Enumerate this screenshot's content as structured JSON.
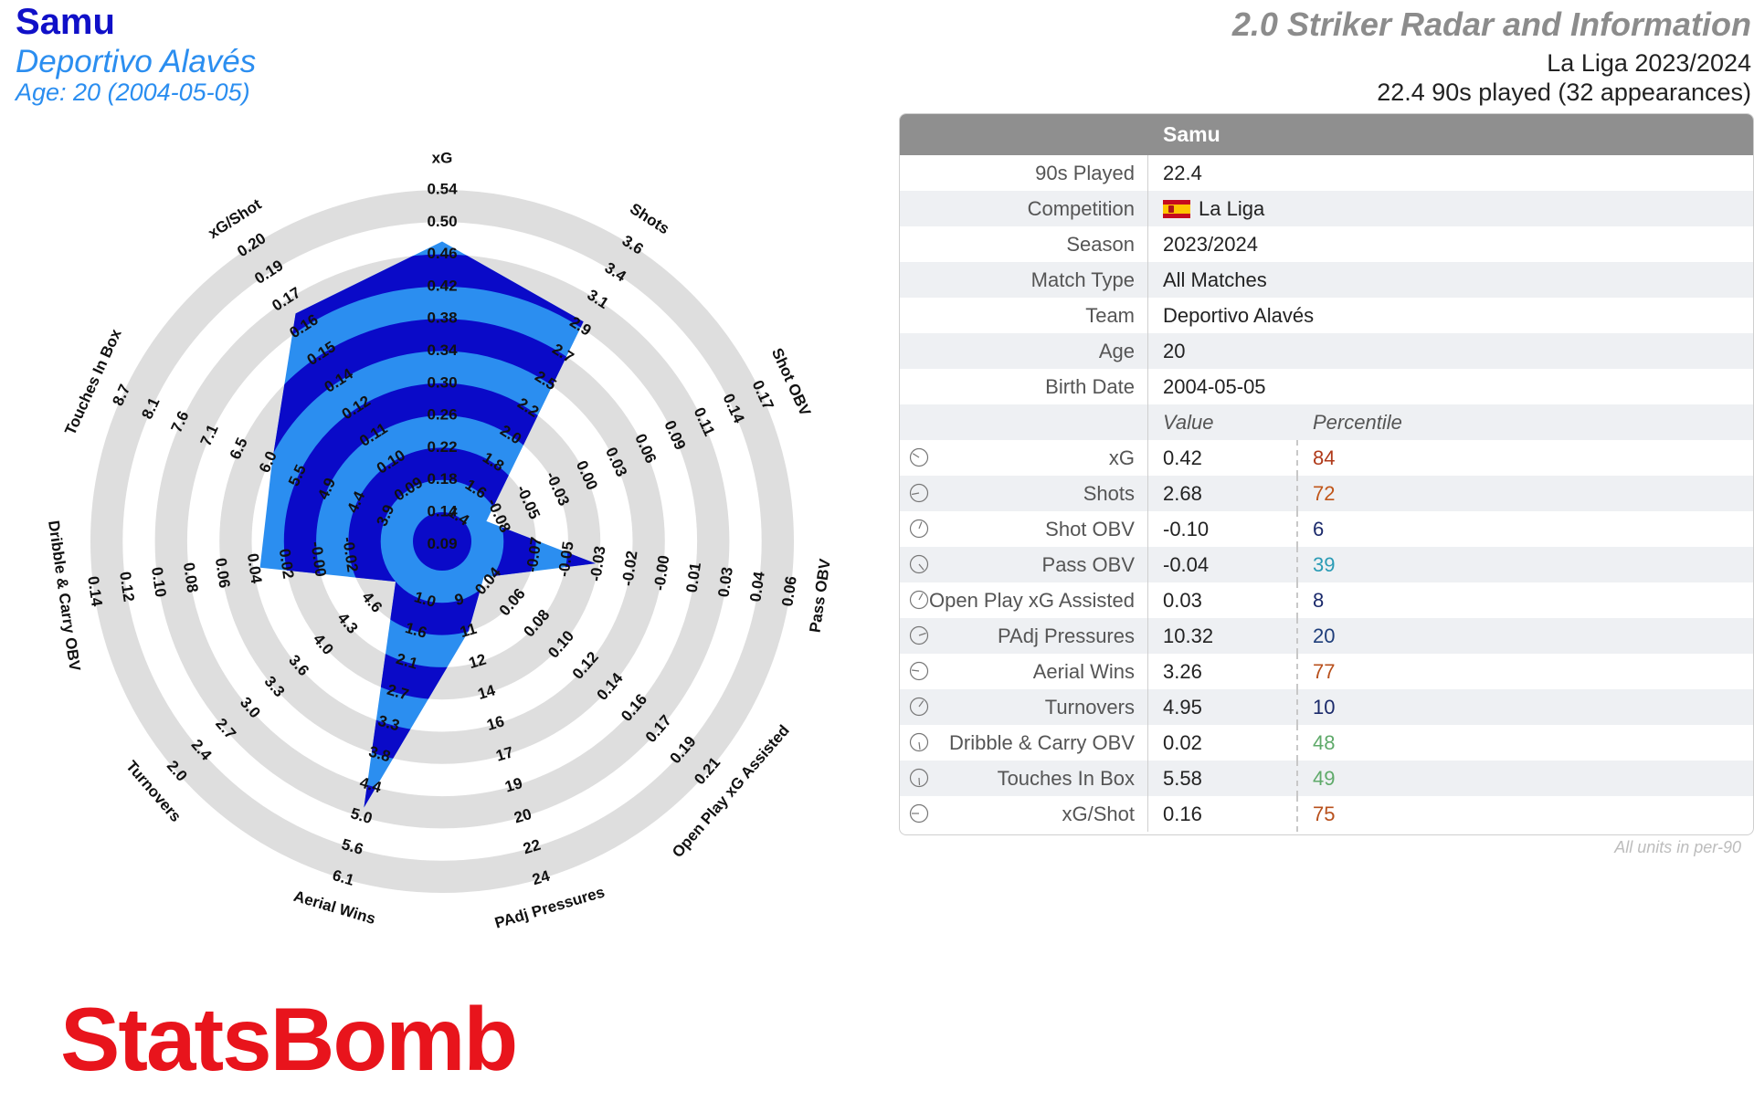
{
  "player": {
    "name": "Samu",
    "team": "Deportivo Alavés",
    "age_line": "Age: 20 (2004-05-05)"
  },
  "header": {
    "title": "2.0 Striker Radar and Information",
    "league_line": "La Liga 2023/2024",
    "played_line": "22.4 90s played (32 appearances)"
  },
  "info_table": {
    "header": "Samu",
    "rows": [
      {
        "label": "90s Played",
        "value": "22.4"
      },
      {
        "label": "Competition",
        "value": "La Liga"
      },
      {
        "label": "Season",
        "value": "2023/2024"
      },
      {
        "label": "Match Type",
        "value": "All Matches"
      },
      {
        "label": "Team",
        "value": "Deportivo Alavés"
      },
      {
        "label": "Age",
        "value": "20"
      },
      {
        "label": "Birth Date",
        "value": "2004-05-05"
      }
    ],
    "value_header": "Value",
    "percentile_header": "Percentile",
    "stats": [
      {
        "label": "xG",
        "value": "0.42",
        "percentile": "84",
        "color": "#b03a1a"
      },
      {
        "label": "Shots",
        "value": "2.68",
        "percentile": "72",
        "color": "#c0561a"
      },
      {
        "label": "Shot OBV",
        "value": "-0.10",
        "percentile": "6",
        "color": "#1b2a6b"
      },
      {
        "label": "Pass OBV",
        "value": "-0.04",
        "percentile": "39",
        "color": "#2a9bb5"
      },
      {
        "label": "Open Play xG Assisted",
        "value": "0.03",
        "percentile": "8",
        "color": "#1b2a6b"
      },
      {
        "label": "PAdj Pressures",
        "value": "10.32",
        "percentile": "20",
        "color": "#1e3d7a"
      },
      {
        "label": "Aerial Wins",
        "value": "3.26",
        "percentile": "77",
        "color": "#b8501c"
      },
      {
        "label": "Turnovers",
        "value": "4.95",
        "percentile": "10",
        "color": "#1b2a6b"
      },
      {
        "label": "Dribble & Carry OBV",
        "value": "0.02",
        "percentile": "48",
        "color": "#5faa6a"
      },
      {
        "label": "Touches In Box",
        "value": "5.58",
        "percentile": "49",
        "color": "#5faa6a"
      },
      {
        "label": "xG/Shot",
        "value": "0.16",
        "percentile": "75",
        "color": "#b8501c"
      }
    ],
    "units_note": "All units in per-90"
  },
  "brand": "StatsBomb",
  "chart_data": {
    "type": "radar",
    "colors": {
      "dark": "#0a0ac8",
      "light": "#2b8ef0",
      "ring": "#dedede"
    },
    "metrics": [
      {
        "name": "xG",
        "value": 0.42,
        "percentile": 84,
        "ticks": [
          "0.09",
          "0.14",
          "0.18",
          "0.22",
          "0.26",
          "0.30",
          "0.34",
          "0.38",
          "0.42",
          "0.46",
          "0.50",
          "0.54"
        ]
      },
      {
        "name": "Shots",
        "value": 2.68,
        "percentile": 72,
        "ticks": [
          "1.4",
          "1.6",
          "1.8",
          "2.0",
          "2.2",
          "2.5",
          "2.7",
          "2.9",
          "3.1",
          "3.4",
          "3.6"
        ]
      },
      {
        "name": "Shot OBV",
        "value": -0.1,
        "percentile": 6,
        "ticks": [
          "-0.08",
          "-0.05",
          "-0.03",
          "0.00",
          "0.03",
          "0.06",
          "0.09",
          "0.11",
          "0.14",
          "0.17"
        ]
      },
      {
        "name": "Pass OBV",
        "value": -0.04,
        "percentile": 39,
        "ticks": [
          "-0.07",
          "-0.05",
          "-0.03",
          "-0.02",
          "-0.00",
          "0.01",
          "0.03",
          "0.04",
          "0.06"
        ]
      },
      {
        "name": "Open Play xG Assisted",
        "value": 0.03,
        "percentile": 8,
        "ticks": [
          "0.04",
          "0.06",
          "0.08",
          "0.10",
          "0.12",
          "0.14",
          "0.16",
          "0.17",
          "0.19",
          "0.21"
        ]
      },
      {
        "name": "PAdj Pressures",
        "value": 10.32,
        "percentile": 20,
        "ticks": [
          "9",
          "11",
          "12",
          "14",
          "16",
          "17",
          "19",
          "20",
          "22",
          "24"
        ]
      },
      {
        "name": "Aerial Wins",
        "value": 3.26,
        "percentile": 77,
        "ticks": [
          "1.0",
          "1.6",
          "2.1",
          "2.7",
          "3.3",
          "3.8",
          "4.4",
          "5.0",
          "5.6",
          "6.1"
        ]
      },
      {
        "name": "Turnovers",
        "value": 4.95,
        "percentile": 10,
        "ticks": [
          "4.6",
          "4.3",
          "4.0",
          "3.6",
          "3.3",
          "3.0",
          "2.7",
          "2.4",
          "2.0"
        ]
      },
      {
        "name": "Dribble & Carry OBV",
        "value": 0.02,
        "percentile": 48,
        "ticks": [
          "-0.02",
          "-0.00",
          "0.02",
          "0.04",
          "0.06",
          "0.08",
          "0.10",
          "0.12",
          "0.14"
        ]
      },
      {
        "name": "Touches In Box",
        "value": 5.58,
        "percentile": 49,
        "ticks": [
          "3.9",
          "4.4",
          "4.9",
          "5.5",
          "6.0",
          "6.5",
          "7.1",
          "7.6",
          "8.1",
          "8.7"
        ]
      },
      {
        "name": "xG/Shot",
        "value": 0.16,
        "percentile": 75,
        "ticks": [
          "0.09",
          "0.10",
          "0.11",
          "0.12",
          "0.14",
          "0.15",
          "0.16",
          "0.17",
          "0.19",
          "0.20"
        ]
      }
    ]
  }
}
